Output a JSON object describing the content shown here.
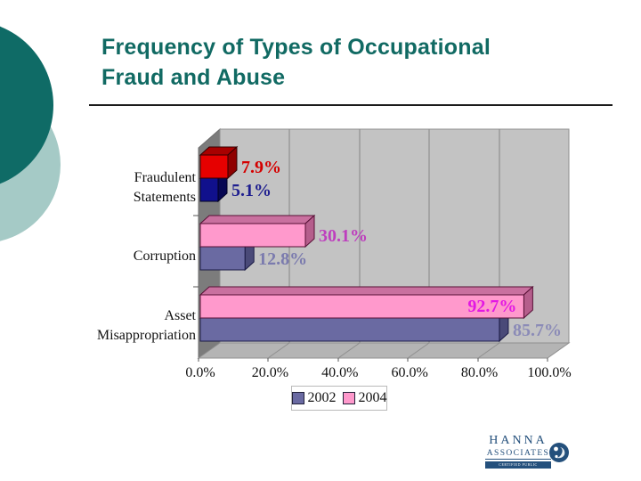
{
  "slide": {
    "title": "Frequency of Types of Occupational\nFraud and Abuse",
    "title_color": "#116a63"
  },
  "chart_data": {
    "type": "bar",
    "orientation": "horizontal",
    "title": "",
    "xlabel": "",
    "ylabel": "",
    "xlim": [
      0,
      100
    ],
    "grid": true,
    "legend_position": "bottom",
    "categories": [
      "Fraudulent\nStatements",
      "Corruption",
      "Asset\nMisappropriation"
    ],
    "x_ticks": [
      "0.0%",
      "20.0%",
      "40.0%",
      "60.0%",
      "80.0%",
      "100.0%"
    ],
    "series": [
      {
        "name": "2002",
        "values": [
          5.1,
          12.8,
          85.7
        ],
        "labels": [
          "5.1%",
          "12.8%",
          "85.7%"
        ],
        "bar_front": [
          "#10108c",
          "#6a6aa2",
          "#6a6aa2"
        ],
        "bar_top": [
          "#0a0a66",
          "#56568a",
          "#56568a"
        ],
        "bar_side": [
          "#070752",
          "#4a4a78",
          "#4a4a78"
        ],
        "bar_stroke": [
          "#000022",
          "#1a1a45",
          "#1a1a45"
        ],
        "label_colors": [
          "#1e1e8f",
          "#7b7bae",
          "#8b8bb7"
        ],
        "label_inside": [
          false,
          false,
          false
        ],
        "legend_color": "#6a6aa2"
      },
      {
        "name": "2004",
        "values": [
          7.9,
          30.1,
          92.7
        ],
        "labels": [
          "7.9%",
          "30.1%",
          "92.7%"
        ],
        "bar_front": [
          "#e60000",
          "#ff99cc",
          "#ff99cc"
        ],
        "bar_top": [
          "#a80000",
          "#c9709f",
          "#c9709f"
        ],
        "bar_side": [
          "#8f0000",
          "#b55e8c",
          "#b55e8c"
        ],
        "bar_stroke": [
          "#330000",
          "#571035",
          "#571035"
        ],
        "label_colors": [
          "#d40000",
          "#be3fbe",
          "#e318e3"
        ],
        "label_inside": [
          false,
          false,
          true
        ],
        "legend_color": "#ff99cc"
      }
    ]
  },
  "logo": {
    "name": "HANNA",
    "sub": "ASSOCIATES",
    "tagline": "CERTIFIED PUBLIC ACCOUNTANTS",
    "color": "#24507c"
  }
}
